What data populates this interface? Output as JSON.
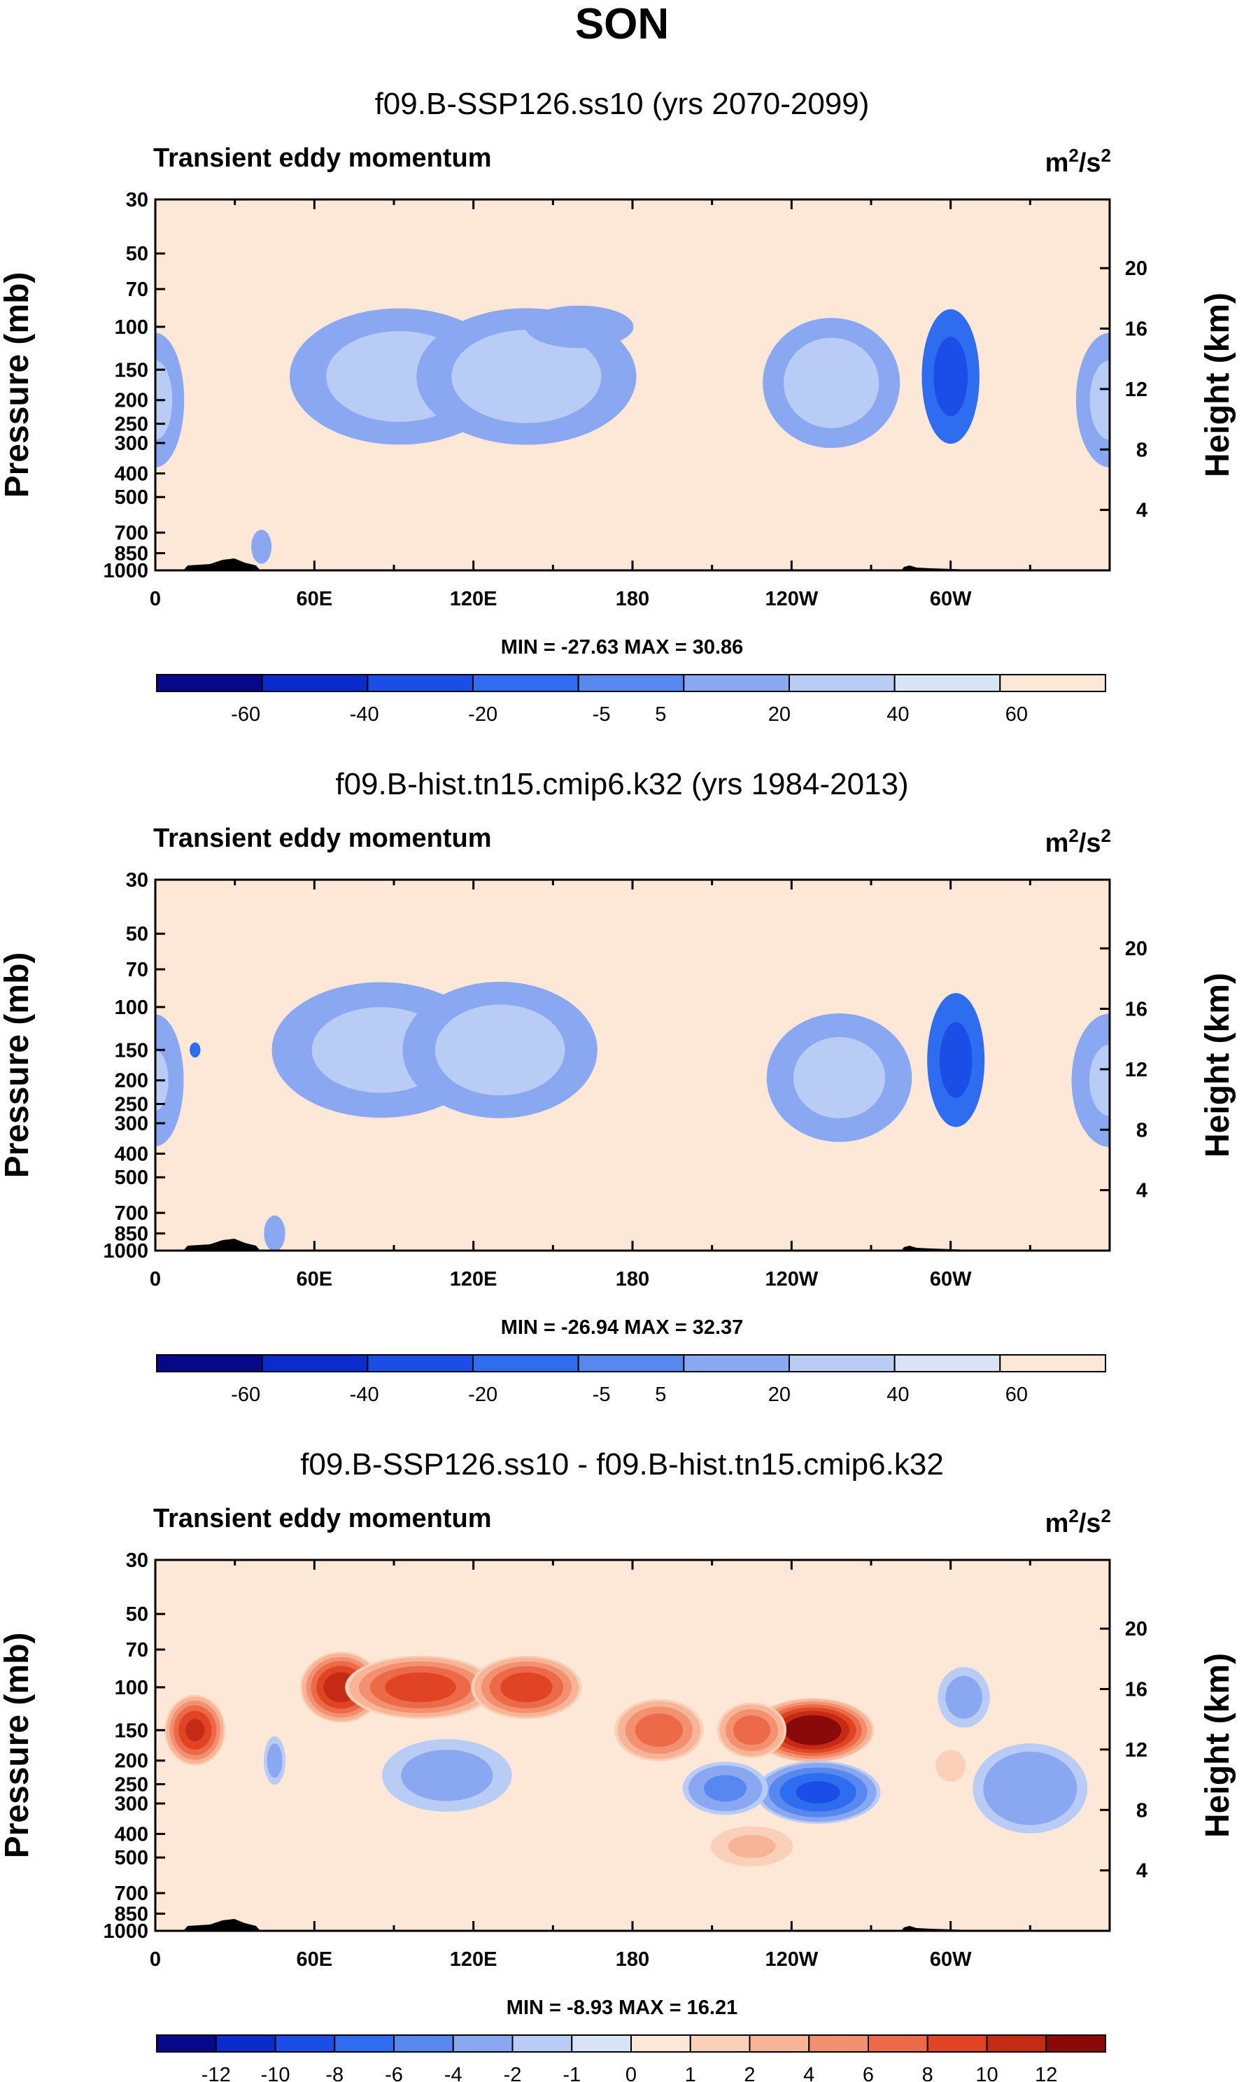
{
  "figure_title": "SON",
  "colors": {
    "cmap": [
      "#08088a",
      "#0a2ccc",
      "#1a4ee6",
      "#2e6cf0",
      "#5688f0",
      "#8aa8f2",
      "#b8ccf6",
      "#d8e4f6",
      "#fde8d8",
      "#fbd0b8",
      "#f7b496",
      "#f29070",
      "#ec6a48",
      "#e04424",
      "#c42a14",
      "#8a0a0a"
    ]
  },
  "chart_data": [
    {
      "type": "contour",
      "title": "f09.B-SSP126.ss10 (yrs 2070-2099)",
      "left_label": "Transient eddy momentum",
      "units": "m²/s²",
      "units_base": "m",
      "units_exp1": "2",
      "units_mid": "/s",
      "units_exp2": "2",
      "ylabel": "Pressure (mb)",
      "y2label": "Height (km)",
      "y_ticks": [
        "30",
        "50",
        "70",
        "100",
        "150",
        "200",
        "250",
        "300",
        "400",
        "500",
        "700",
        "850",
        "1000"
      ],
      "y_ticks_values": [
        30,
        50,
        70,
        100,
        150,
        200,
        250,
        300,
        400,
        500,
        700,
        850,
        1000
      ],
      "ylim": [
        30,
        1000
      ],
      "height_ticks": [
        "20",
        "16",
        "12",
        "8",
        "4"
      ],
      "height_ticks_values": [
        20,
        16,
        12,
        8,
        4
      ],
      "x_ticks": [
        "0",
        "60E",
        "120E",
        "180",
        "120W",
        "60W"
      ],
      "x_ticks_values": [
        0,
        60,
        120,
        180,
        240,
        300
      ],
      "xlim": [
        0,
        360
      ],
      "minmax": "MIN = -27.63   MAX = 30.86",
      "colorbar_labels": [
        "-60",
        "-40",
        "-20",
        "-5",
        "5",
        "20",
        "40",
        "60"
      ],
      "blobs": [
        {
          "lon": 92,
          "p": 160,
          "w": 45,
          "h": 0.2,
          "v": 32
        },
        {
          "lon": 140,
          "p": 160,
          "w": 45,
          "h": 0.2,
          "v": 33
        },
        {
          "lon": 255,
          "p": 170,
          "w": 28,
          "h": 0.19,
          "v": 34
        },
        {
          "lon": 0,
          "p": 200,
          "w": 12,
          "h": 0.2,
          "v": 28
        },
        {
          "lon": 360,
          "p": 200,
          "w": 14,
          "h": 0.2,
          "v": 28
        },
        {
          "lon": 300,
          "p": 160,
          "w": 12,
          "h": 0.2,
          "v": -28
        },
        {
          "lon": 160,
          "p": 100,
          "w": 50,
          "h": 0.14,
          "v": 6
        },
        {
          "lon": 40,
          "p": 800,
          "w": 5,
          "h": 0.06,
          "v": 12
        },
        {
          "lon": 200,
          "p": 400,
          "w": 45,
          "h": 0.18,
          "v": -4
        }
      ]
    },
    {
      "type": "contour",
      "title": "f09.B-hist.tn15.cmip6.k32 (yrs 1984-2013)",
      "left_label": "Transient eddy momentum",
      "units": "m²/s²",
      "units_base": "m",
      "units_exp1": "2",
      "units_mid": "/s",
      "units_exp2": "2",
      "ylabel": "Pressure (mb)",
      "y2label": "Height (km)",
      "y_ticks": [
        "30",
        "50",
        "70",
        "100",
        "150",
        "200",
        "250",
        "300",
        "400",
        "500",
        "700",
        "850",
        "1000"
      ],
      "y_ticks_values": [
        30,
        50,
        70,
        100,
        150,
        200,
        250,
        300,
        400,
        500,
        700,
        850,
        1000
      ],
      "ylim": [
        30,
        1000
      ],
      "height_ticks": [
        "20",
        "16",
        "12",
        "8",
        "4"
      ],
      "height_ticks_values": [
        20,
        16,
        12,
        8,
        4
      ],
      "x_ticks": [
        "0",
        "60E",
        "120E",
        "180",
        "120W",
        "60W"
      ],
      "x_ticks_values": [
        0,
        60,
        120,
        180,
        240,
        300
      ],
      "xlim": [
        0,
        360
      ],
      "minmax": "MIN = -26.94   MAX = 32.37",
      "colorbar_labels": [
        "-60",
        "-40",
        "-20",
        "-5",
        "5",
        "20",
        "40",
        "60"
      ],
      "blobs": [
        {
          "lon": 85,
          "p": 150,
          "w": 45,
          "h": 0.2,
          "v": 30
        },
        {
          "lon": 130,
          "p": 150,
          "w": 40,
          "h": 0.2,
          "v": 32
        },
        {
          "lon": 258,
          "p": 195,
          "w": 30,
          "h": 0.19,
          "v": 30
        },
        {
          "lon": 0,
          "p": 200,
          "w": 12,
          "h": 0.2,
          "v": 24
        },
        {
          "lon": 360,
          "p": 200,
          "w": 16,
          "h": 0.2,
          "v": 26
        },
        {
          "lon": 302,
          "p": 165,
          "w": 12,
          "h": 0.2,
          "v": -27
        },
        {
          "lon": 15,
          "p": 150,
          "w": 5,
          "h": 0.05,
          "v": -6
        },
        {
          "lon": 45,
          "p": 850,
          "w": 5,
          "h": 0.06,
          "v": 14
        },
        {
          "lon": 220,
          "p": 350,
          "w": 40,
          "h": 0.2,
          "v": -4
        }
      ]
    },
    {
      "type": "contour",
      "title": "f09.B-SSP126.ss10 - f09.B-hist.tn15.cmip6.k32",
      "left_label": "Transient eddy momentum",
      "units": "m²/s²",
      "units_base": "m",
      "units_exp1": "2",
      "units_mid": "/s",
      "units_exp2": "2",
      "ylabel": "Pressure (mb)",
      "y2label": "Height (km)",
      "y_ticks": [
        "30",
        "50",
        "70",
        "100",
        "150",
        "200",
        "250",
        "300",
        "400",
        "500",
        "700",
        "850",
        "1000"
      ],
      "y_ticks_values": [
        30,
        50,
        70,
        100,
        150,
        200,
        250,
        300,
        400,
        500,
        700,
        850,
        1000
      ],
      "ylim": [
        30,
        1000
      ],
      "height_ticks": [
        "20",
        "16",
        "12",
        "8",
        "4"
      ],
      "height_ticks_values": [
        20,
        16,
        12,
        8,
        4
      ],
      "x_ticks": [
        "0",
        "60E",
        "120E",
        "180",
        "120W",
        "60W"
      ],
      "x_ticks_values": [
        0,
        60,
        120,
        180,
        240,
        300
      ],
      "xlim": [
        0,
        360
      ],
      "minmax": "MIN = -8.93   MAX = 16.21",
      "colorbar_labels": [
        "-12",
        "-10",
        "-8",
        "-6",
        "-4",
        "-2",
        "-1",
        "0",
        "1",
        "2",
        "4",
        "6",
        "8",
        "10",
        "12"
      ],
      "blobs": [
        {
          "lon": 15,
          "p": 150,
          "w": 12,
          "h": 0.1,
          "v": 11
        },
        {
          "lon": 70,
          "p": 100,
          "w": 16,
          "h": 0.1,
          "v": 12
        },
        {
          "lon": 100,
          "p": 100,
          "w": 30,
          "h": 0.09,
          "v": 10
        },
        {
          "lon": 140,
          "p": 100,
          "w": 22,
          "h": 0.09,
          "v": 10
        },
        {
          "lon": 190,
          "p": 150,
          "w": 18,
          "h": 0.09,
          "v": 8
        },
        {
          "lon": 248,
          "p": 150,
          "w": 24,
          "h": 0.09,
          "v": 15
        },
        {
          "lon": 225,
          "p": 150,
          "w": 14,
          "h": 0.08,
          "v": 8
        },
        {
          "lon": 250,
          "p": 270,
          "w": 25,
          "h": 0.09,
          "v": -9
        },
        {
          "lon": 215,
          "p": 260,
          "w": 18,
          "h": 0.08,
          "v": -5
        },
        {
          "lon": 110,
          "p": 230,
          "w": 30,
          "h": 0.12,
          "v": -3
        },
        {
          "lon": 330,
          "p": 260,
          "w": 25,
          "h": 0.14,
          "v": -4
        },
        {
          "lon": 305,
          "p": 110,
          "w": 12,
          "h": 0.1,
          "v": -3
        },
        {
          "lon": 225,
          "p": 450,
          "w": 20,
          "h": 0.07,
          "v": 2.5
        },
        {
          "lon": 45,
          "p": 200,
          "w": 5,
          "h": 0.08,
          "v": -3
        },
        {
          "lon": 300,
          "p": 210,
          "w": 8,
          "h": 0.06,
          "v": 2
        }
      ]
    }
  ]
}
